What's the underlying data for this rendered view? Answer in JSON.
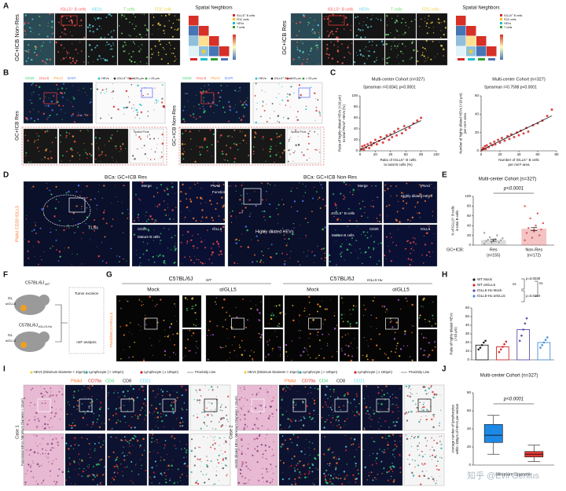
{
  "figure": {
    "panel_labels": [
      "A",
      "B",
      "C",
      "D",
      "E",
      "F",
      "G",
      "H",
      "I",
      "J"
    ],
    "A": {
      "left_group": "GC+ICB Non-Res",
      "right_group": "GC+ICB Res",
      "columns": [
        "IGLL5⁺ B cells",
        "HEVs",
        "T cells",
        "FDC cells"
      ],
      "heatmap_title": "Spatial Neighbors",
      "heatmap_legend": [
        "IGLL5⁺ B cells",
        "FDC cells",
        "HEVs",
        "T cells"
      ]
    },
    "B": {
      "groups": [
        "GC+ICB Res",
        "GC+ICB Non-Res"
      ],
      "stains": [
        "CD20",
        "IGLL5",
        "PNAd",
        "DAPI"
      ],
      "spatial_legend": [
        "HEVs",
        "IGLL5⁺ B cell",
        "< 25 μm",
        "> 25 μm"
      ],
      "inset": "Spatial Plots"
    },
    "D": {
      "titles": [
        "BCa: GC+ICB Res",
        "BCa: GC+ICB Non-Res"
      ],
      "stains": "PNAd CD20 IGLL5",
      "tls": "TLSs",
      "merge": "Merge",
      "pnad": "PNAd",
      "functional": "Functional HEVs",
      "cd20": "CD20",
      "mature": "Mature B cells",
      "igll5": "IGLL5",
      "dilated": "Highly dilated HEVs",
      "igll5_b": "IGLL5⁺ B cells"
    },
    "F": {
      "wt": "C57BL/6J",
      "wt_sub": "WT",
      "hu": "C57BL/6J",
      "hu_sub": "IGLL5-Hu",
      "gl": "GL",
      "anti": "αIGLL5",
      "excision": "Tumor excision",
      "mif": "mIF analysis"
    },
    "G": {
      "groups": [
        {
          "name": "C57BL/6J",
          "sub": "WT"
        },
        {
          "name": "C57BL/6J",
          "sub": "IGLL5-Hu"
        }
      ],
      "conditions": [
        "Mock",
        "αIGLL5",
        "Mock",
        "αIGLL5"
      ],
      "stains": "PNAd/MECA79/IGLL5"
    },
    "I": {
      "legend_1": [
        "HEVs (Minimum Diameter < 10μm)",
        "Lymphocyte ( < 100μm)",
        "Lymphocyte ( ≥ 100μm)",
        "Proximity Line"
      ],
      "legend_2": [
        "HEVs (Minimum Diameter > 10μm)",
        "Lymphocyte ( < 100μm)",
        "Lymphocyte ( ≥ 100μm)",
        "Proximity Line"
      ],
      "stains": [
        "PNAd",
        "CD79a",
        "CD4",
        "CD8",
        "CD21"
      ],
      "case_1": "Case 1",
      "case_1_desc": "Functional HEVs (Minimum Diameter < 10μm)",
      "case_2": "Case 2",
      "case_2_desc": "Highly dilated HEVs (Minimum Diameter > 10μm)"
    },
    "watermark": "知乎 @Evil Genius"
  },
  "chart_data": [
    {
      "type": "scatter",
      "title": "Multi-center Cohort (n=327)",
      "subtitle": "Spearman r=0.8341   p<0.0001",
      "xlabel": [
        "Ratio of IGLL5⁺ B cells",
        "to total B cells (%)"
      ],
      "ylabel": [
        "Ratio of highly dilated HEVs (>10 μm)",
        "to total PNAd⁺ HEVs (%)"
      ],
      "color": "#d62728",
      "x": [
        2,
        3,
        5,
        6,
        8,
        10,
        12,
        14,
        15,
        18,
        20,
        22,
        25,
        27,
        30,
        32,
        35,
        38,
        40,
        42,
        45,
        48,
        50,
        55,
        58,
        60,
        65,
        70,
        75,
        80
      ],
      "values": [
        3,
        8,
        2,
        10,
        6,
        12,
        5,
        15,
        10,
        14,
        20,
        12,
        18,
        25,
        15,
        22,
        28,
        20,
        30,
        25,
        35,
        28,
        40,
        32,
        45,
        38,
        42,
        50,
        55,
        60
      ],
      "xlim": [
        0,
        100
      ],
      "xticks": [
        0,
        20,
        40,
        60,
        80,
        100
      ],
      "ylim": [
        0,
        100
      ],
      "yticks": [
        0,
        20,
        40,
        60,
        80,
        100
      ]
    },
    {
      "type": "scatter",
      "title": "Multi-center Cohort (n=327)",
      "subtitle": "Spearman r=0.7598   p<0.0001",
      "xlabel": [
        "Number of IGLL5⁺ B cells",
        "per mm² area"
      ],
      "ylabel": [
        "Number of highly dilated HEVs (>10 μm)",
        "per mm² area"
      ],
      "color": "#d62728",
      "x": [
        1,
        2,
        3,
        4,
        5,
        6,
        8,
        10,
        12,
        14,
        15,
        18,
        20,
        22,
        25,
        28,
        30,
        32,
        35,
        38,
        40,
        42,
        45,
        48,
        50,
        55,
        60,
        65,
        70,
        75
      ],
      "values": [
        1,
        3,
        2,
        5,
        2,
        6,
        4,
        8,
        6,
        10,
        7,
        12,
        9,
        14,
        11,
        16,
        13,
        18,
        15,
        20,
        17,
        22,
        19,
        25,
        21,
        28,
        30,
        33,
        38,
        45
      ],
      "xlim": [
        0,
        80
      ],
      "xticks": [
        0,
        20,
        40,
        60,
        80
      ],
      "ylim": [
        0,
        60
      ],
      "yticks": [
        0,
        20,
        40,
        60
      ]
    },
    {
      "type": "bar",
      "title": "Multi-center Cohort (n=327)",
      "ylabel": [
        "% of IGLL5⁺ B cells",
        "in total B cells"
      ],
      "x_title": "GC+ICB:",
      "categories": [
        "Res",
        "Non-Res"
      ],
      "category_notes": [
        "(n=155)",
        "(n=172)"
      ],
      "values": [
        10,
        33
      ],
      "errors": [
        2,
        3
      ],
      "colors": [
        "#9e9e9e",
        "#e05555"
      ],
      "points": [
        [
          3,
          5,
          6,
          8,
          9,
          10,
          11,
          12,
          14,
          16,
          20,
          25
        ],
        [
          10,
          15,
          20,
          25,
          28,
          32,
          35,
          40,
          45,
          55,
          65,
          80
        ]
      ],
      "annotation": "p<0.0001",
      "ylim": [
        0,
        100
      ],
      "yticks": [
        0,
        20,
        40,
        60,
        80,
        100
      ]
    },
    {
      "type": "bar",
      "ylabel": [
        "Ratio of highly dilated HEVs",
        "(>10 μm)"
      ],
      "series": [
        {
          "name": "WT Mock",
          "color": "#222222",
          "values": [
            17
          ],
          "points": [
            12,
            14,
            17,
            20,
            22
          ]
        },
        {
          "name": "WT αIGLL5",
          "color": "#d62728",
          "values": [
            15
          ],
          "points": [
            9,
            12,
            15,
            18,
            21
          ]
        },
        {
          "name": "IGLL5-Hu Mock",
          "color": "#5b4fb0",
          "values": [
            35
          ],
          "points": [
            22,
            28,
            35,
            42,
            48
          ]
        },
        {
          "name": "IGLL5-Hu αIGLL5",
          "color": "#4a90d9",
          "values": [
            20
          ],
          "points": [
            14,
            17,
            20,
            23,
            26
          ]
        }
      ],
      "annotations": [
        "p=0.0038",
        "p=0.0164",
        "ns",
        "ns"
      ],
      "ylim": [
        0,
        60
      ],
      "yticks": [
        0,
        10,
        20,
        30,
        40,
        50,
        60
      ]
    },
    {
      "type": "box",
      "title": "Multi-center Cohort (n=327)",
      "ylabel": [
        "Average number of lymphocytes",
        "within 100μm of HEVs per section"
      ],
      "xlabel": "Minimum Diameter",
      "series": [
        {
          "color": "#1e88e5",
          "whisker_low": 12,
          "q1": 25,
          "median": 33,
          "q3": 45,
          "whisker_high": 55
        },
        {
          "color": "#e53935",
          "whisker_low": 4,
          "q1": 9,
          "median": 12,
          "q3": 15,
          "whisker_high": 22
        }
      ],
      "annotation": "p<0.0001",
      "ylim": [
        0,
        80
      ],
      "yticks": [
        0,
        20,
        40,
        60,
        80
      ]
    }
  ]
}
